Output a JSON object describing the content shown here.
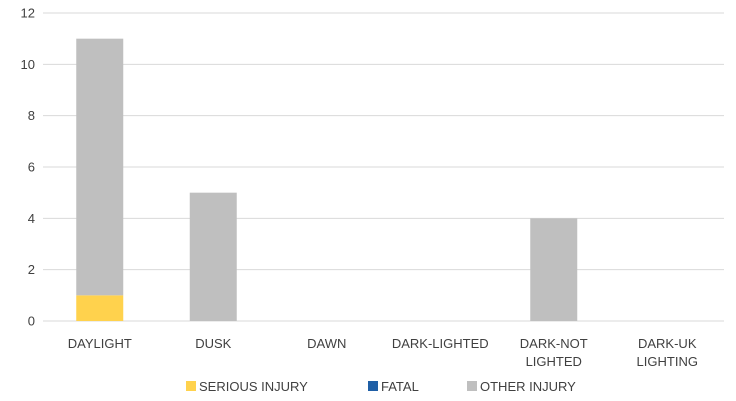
{
  "chart_data": {
    "type": "bar",
    "stacked": true,
    "categories": [
      [
        "DAYLIGHT"
      ],
      [
        "DUSK"
      ],
      [
        "DAWN"
      ],
      [
        "DARK-LIGHTED"
      ],
      [
        "DARK-NOT",
        "LIGHTED"
      ],
      [
        "DARK-UK",
        "LIGHTING"
      ]
    ],
    "series": [
      {
        "name": "SERIOUS INJURY",
        "color": "#ffd24d",
        "values": [
          1,
          0,
          0,
          0,
          0,
          0
        ]
      },
      {
        "name": "FATAL",
        "color": "#1f5fa6",
        "values": [
          0,
          0,
          0,
          0,
          0,
          0
        ]
      },
      {
        "name": "OTHER INJURY",
        "color": "#bfbfbf",
        "values": [
          10,
          5,
          0,
          0,
          4,
          0
        ]
      }
    ],
    "ylim": [
      0,
      12
    ],
    "yticks": [
      "0",
      "2",
      "4",
      "6",
      "8",
      "10",
      "12"
    ],
    "grid": true,
    "legend": "bottom"
  }
}
